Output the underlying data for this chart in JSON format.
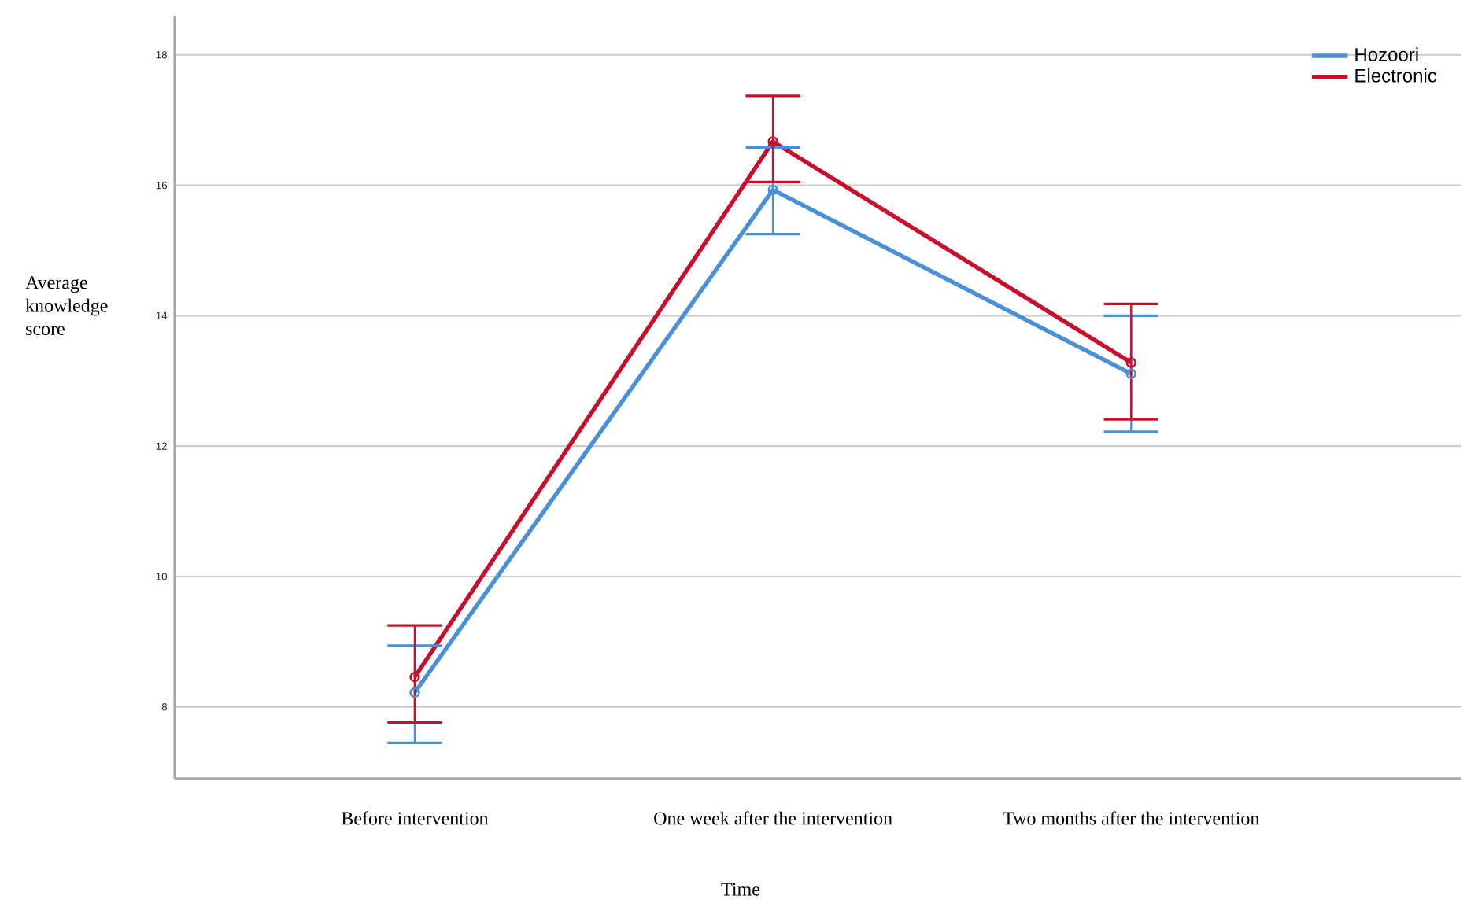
{
  "chart_data": {
    "type": "line",
    "xlabel": "Time",
    "ylabel": "Average knowledge score",
    "categories": [
      "Before intervention",
      "One week after the intervention",
      "Two months after the intervention"
    ],
    "series": [
      {
        "name": "Hozoori",
        "color": "#4a90d9",
        "values": [
          8.22,
          15.93,
          13.11
        ],
        "errors": [
          [
            7.45,
            8.94
          ],
          [
            15.25,
            16.58
          ],
          [
            12.22,
            14.0
          ]
        ]
      },
      {
        "name": "Electronic",
        "color": "#c8102e",
        "values": [
          8.46,
          16.67,
          13.28
        ],
        "errors": [
          [
            7.76,
            9.25
          ],
          [
            16.05,
            17.37
          ],
          [
            12.41,
            14.18
          ]
        ]
      }
    ],
    "ylim": [
      6.9,
      18.6
    ],
    "yticks": [
      8,
      10,
      12,
      14,
      16,
      18
    ],
    "grid": "y",
    "legend": "top right",
    "marker": "circle",
    "line_style": "solid"
  }
}
